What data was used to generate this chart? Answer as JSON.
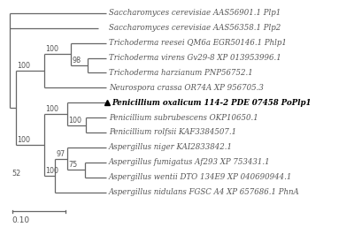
{
  "taxa": [
    {
      "name": "Saccharomyces cerevisiae AAS56901.1 Plp1",
      "y": 13,
      "bold": false,
      "marker": false
    },
    {
      "name": "Saccharomyces cerevisiae AAS56358.1 Plp2",
      "y": 12,
      "bold": false,
      "marker": false
    },
    {
      "name": "Trichoderma reesei QM6a EGR50146.1 Phlp1",
      "y": 11,
      "bold": false,
      "marker": false
    },
    {
      "name": "Trichoderma virens Gv29-8 XP 013953996.1",
      "y": 10,
      "bold": false,
      "marker": false
    },
    {
      "name": "Trichoderma harzianum PNP56752.1",
      "y": 9,
      "bold": false,
      "marker": false
    },
    {
      "name": "Neurospora crassa OR74A XP 956705.3",
      "y": 8,
      "bold": false,
      "marker": false
    },
    {
      "name": "Penicillium oxalicum 114-2 PDE 07458 PoPlp1",
      "y": 7,
      "bold": true,
      "marker": true
    },
    {
      "name": "Penicillium subrubescens OKP10650.1",
      "y": 6,
      "bold": false,
      "marker": false
    },
    {
      "name": "Penicillium rolfsii KAF3384507.1",
      "y": 5,
      "bold": false,
      "marker": false
    },
    {
      "name": "Aspergillus niger KAI2833842.1",
      "y": 4,
      "bold": false,
      "marker": false
    },
    {
      "name": "Aspergillus fumigatus Af293 XP 753431.1",
      "y": 3,
      "bold": false,
      "marker": false
    },
    {
      "name": "Aspergillus wentii DTO 134E9 XP 040690944.1",
      "y": 2,
      "bold": false,
      "marker": false
    },
    {
      "name": "Aspergillus nidulans FGSC A4 XP 657686.1 PhnA",
      "y": 1,
      "bold": false,
      "marker": false
    }
  ],
  "text_color": "#555555",
  "line_color": "#666666",
  "background": "#ffffff",
  "fontsize_taxa": 6.2,
  "fontsize_bootstrap": 5.8,
  "fontsize_scale": 6.5
}
